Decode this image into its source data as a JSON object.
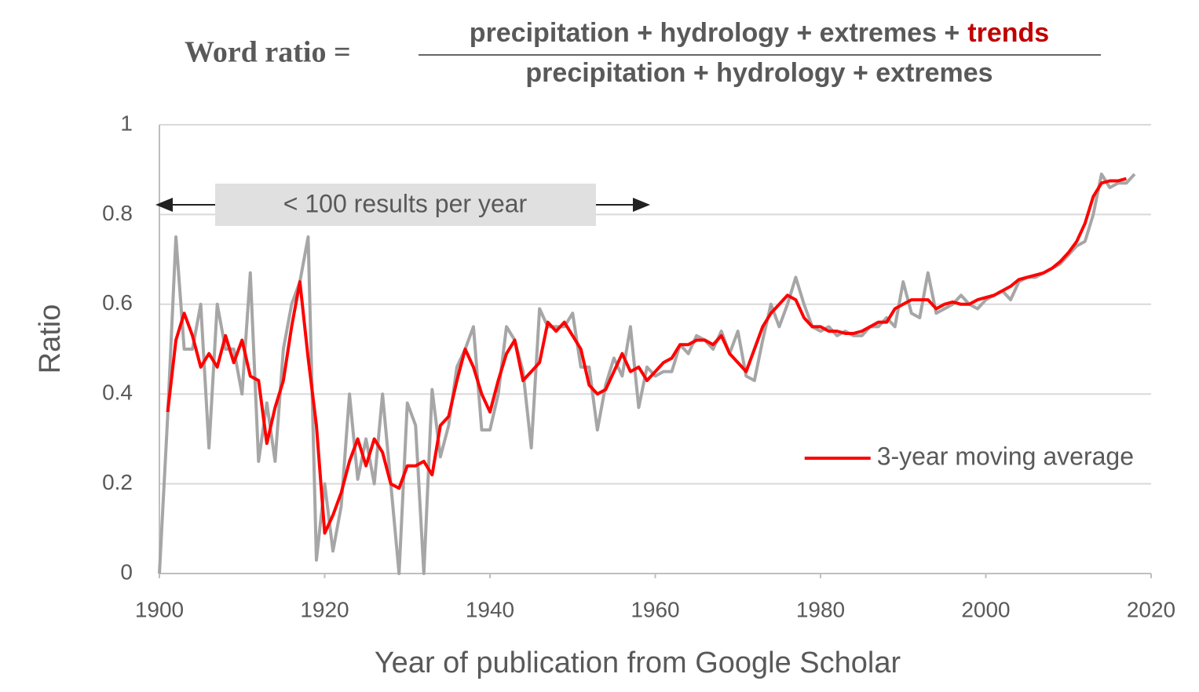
{
  "chart_data": {
    "type": "line",
    "title": {
      "lhs": "Word ratio =",
      "numerator": "precipitation + hydrology + extremes +",
      "numerator_highlight": "trends",
      "denominator": "precipitation + hydrology + extremes"
    },
    "xlabel": "Year of publication from Google Scholar",
    "ylabel": "Ratio",
    "annotation": "< 100 results per year",
    "x": [
      1900,
      1901,
      1902,
      1903,
      1904,
      1905,
      1906,
      1907,
      1908,
      1909,
      1910,
      1911,
      1912,
      1913,
      1914,
      1915,
      1916,
      1917,
      1918,
      1919,
      1920,
      1921,
      1922,
      1923,
      1924,
      1925,
      1926,
      1927,
      1928,
      1929,
      1930,
      1931,
      1932,
      1933,
      1934,
      1935,
      1936,
      1937,
      1938,
      1939,
      1940,
      1941,
      1942,
      1943,
      1944,
      1945,
      1946,
      1947,
      1948,
      1949,
      1950,
      1951,
      1952,
      1953,
      1954,
      1955,
      1956,
      1957,
      1958,
      1959,
      1960,
      1961,
      1962,
      1963,
      1964,
      1965,
      1966,
      1967,
      1968,
      1969,
      1970,
      1971,
      1972,
      1973,
      1974,
      1975,
      1976,
      1977,
      1978,
      1979,
      1980,
      1981,
      1982,
      1983,
      1984,
      1985,
      1986,
      1987,
      1988,
      1989,
      1990,
      1991,
      1992,
      1993,
      1994,
      1995,
      1996,
      1997,
      1998,
      1999,
      2000,
      2001,
      2002,
      2003,
      2004,
      2005,
      2006,
      2007,
      2008,
      2009,
      2010,
      2011,
      2012,
      2013,
      2014,
      2015,
      2016,
      2017,
      2018
    ],
    "series": [
      {
        "color": "#a6a6a6",
        "values": [
          0,
          0.35,
          0.75,
          0.5,
          0.5,
          0.6,
          0.28,
          0.6,
          0.5,
          0.5,
          0.4,
          0.67,
          0.25,
          0.38,
          0.25,
          0.5,
          0.6,
          0.65,
          0.75,
          0.03,
          0.2,
          0.05,
          0.15,
          0.4,
          0.21,
          0.3,
          0.2,
          0.4,
          0.2,
          0,
          0.38,
          0.33,
          0,
          0.41,
          0.26,
          0.33,
          0.46,
          0.5,
          0.55,
          0.32,
          0.32,
          0.4,
          0.55,
          0.52,
          0.45,
          0.28,
          0.59,
          0.55,
          0.55,
          0.55,
          0.58,
          0.46,
          0.46,
          0.32,
          0.42,
          0.48,
          0.44,
          0.55,
          0.37,
          0.46,
          0.44,
          0.45,
          0.45,
          0.51,
          0.49,
          0.53,
          0.52,
          0.5,
          0.54,
          0.49,
          0.54,
          0.44,
          0.43,
          0.52,
          0.6,
          0.55,
          0.6,
          0.66,
          0.6,
          0.55,
          0.54,
          0.55,
          0.53,
          0.54,
          0.53,
          0.53,
          0.55,
          0.55,
          0.57,
          0.55,
          0.65,
          0.58,
          0.57,
          0.67,
          0.58,
          0.59,
          0.6,
          0.62,
          0.6,
          0.59,
          0.61,
          0.62,
          0.63,
          0.61,
          0.65,
          0.66,
          0.66,
          0.67,
          0.68,
          0.69,
          0.71,
          0.73,
          0.74,
          0.8,
          0.89,
          0.86,
          0.87,
          0.87,
          0.89
        ]
      },
      {
        "name": "3-year moving average",
        "color": "#ff0000",
        "values": [
          null,
          0.36,
          0.52,
          0.58,
          0.53,
          0.46,
          0.49,
          0.46,
          0.53,
          0.47,
          0.52,
          0.44,
          0.43,
          0.29,
          0.37,
          0.43,
          0.55,
          0.65,
          0.48,
          0.33,
          0.09,
          0.13,
          0.18,
          0.25,
          0.3,
          0.24,
          0.3,
          0.27,
          0.2,
          0.19,
          0.24,
          0.24,
          0.25,
          0.22,
          0.33,
          0.35,
          0.43,
          0.5,
          0.46,
          0.4,
          0.36,
          0.43,
          0.49,
          0.52,
          0.43,
          0.45,
          0.47,
          0.56,
          0.54,
          0.56,
          0.53,
          0.5,
          0.42,
          0.4,
          0.41,
          0.45,
          0.49,
          0.45,
          0.46,
          0.43,
          0.45,
          0.47,
          0.48,
          0.51,
          0.51,
          0.52,
          0.52,
          0.51,
          0.53,
          0.49,
          0.47,
          0.45,
          0.5,
          0.55,
          0.58,
          0.6,
          0.62,
          0.61,
          0.57,
          0.55,
          0.55,
          0.54,
          0.54,
          0.535,
          0.535,
          0.54,
          0.55,
          0.56,
          0.56,
          0.59,
          0.6,
          0.61,
          0.61,
          0.61,
          0.59,
          0.6,
          0.605,
          0.6,
          0.6,
          0.61,
          0.615,
          0.62,
          0.63,
          0.64,
          0.655,
          0.66,
          0.665,
          0.67,
          0.68,
          0.695,
          0.715,
          0.74,
          0.78,
          0.84,
          0.87,
          0.875,
          0.875,
          0.88,
          null
        ]
      }
    ],
    "xlim": [
      1900,
      2020
    ],
    "xticks": [
      1900,
      1920,
      1940,
      1960,
      1980,
      2000,
      2020
    ],
    "ylim": [
      0,
      1
    ],
    "yticks": [
      0,
      0.2,
      0.4,
      0.6,
      0.8,
      1
    ],
    "grid": true,
    "legend": "lower right"
  }
}
